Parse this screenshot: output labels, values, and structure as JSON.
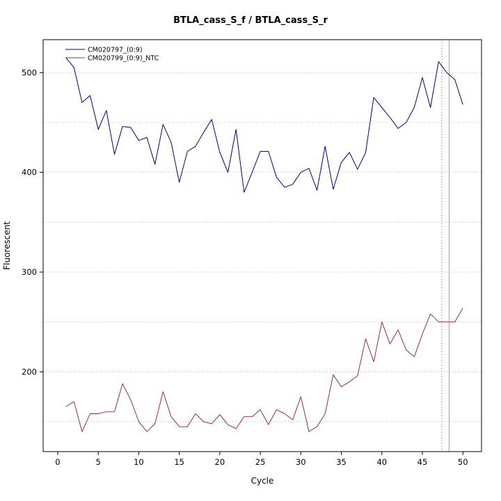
{
  "chart_data": {
    "type": "line",
    "title": "BTLA_cass_S_f / BTLA_cass_S_r",
    "xlabel": "Cycle",
    "ylabel": "Fluorescent",
    "xlim": [
      -1.8,
      52.3
    ],
    "ylim": [
      120,
      533
    ],
    "x_ticks": [
      0,
      5,
      10,
      15,
      20,
      25,
      30,
      35,
      40,
      45,
      50
    ],
    "y_ticks": [
      200,
      300,
      400,
      500
    ],
    "grid_y": [
      150,
      200,
      250,
      300,
      350,
      400,
      450,
      500
    ],
    "grid_color": "#b8b8b8",
    "legend_position": "top-left",
    "x": [
      1,
      2,
      3,
      4,
      5,
      6,
      7,
      8,
      9,
      10,
      11,
      12,
      13,
      14,
      15,
      16,
      17,
      18,
      19,
      20,
      21,
      22,
      23,
      24,
      25,
      26,
      27,
      28,
      29,
      30,
      31,
      32,
      33,
      34,
      35,
      36,
      37,
      38,
      39,
      40,
      41,
      42,
      43,
      44,
      45,
      46,
      47,
      48,
      49,
      50
    ],
    "series": [
      {
        "name": "CM020797_(0:9)",
        "color": "#00008B",
        "values": [
          515,
          505,
          470,
          477,
          443,
          462,
          418,
          446,
          445,
          432,
          435,
          408,
          448,
          430,
          390,
          421,
          426,
          440,
          453,
          420,
          400,
          443,
          380,
          400,
          421,
          421,
          395,
          385,
          388,
          400,
          404,
          382,
          426,
          383,
          410,
          420,
          403,
          420,
          475,
          465,
          455,
          444,
          450,
          465,
          495,
          465,
          511,
          500,
          493,
          468
        ]
      },
      {
        "name": "CM020799_(0:9)_NTC",
        "color": "#9B3030",
        "values": [
          165,
          170,
          140,
          158,
          158,
          160,
          160,
          188,
          172,
          150,
          140,
          148,
          180,
          155,
          145,
          145,
          158,
          150,
          148,
          157,
          147,
          143,
          155,
          155,
          162,
          147,
          162,
          158,
          152,
          175,
          140,
          145,
          158,
          197,
          185,
          190,
          196,
          233,
          210,
          250,
          228,
          242,
          222,
          215,
          238,
          258,
          250,
          250,
          250,
          264
        ]
      }
    ],
    "vlines": [
      {
        "x": 47.4,
        "color": "#666666",
        "dash": "1,3"
      },
      {
        "x": 48.3,
        "color": "#f08080",
        "dash": ""
      }
    ]
  }
}
